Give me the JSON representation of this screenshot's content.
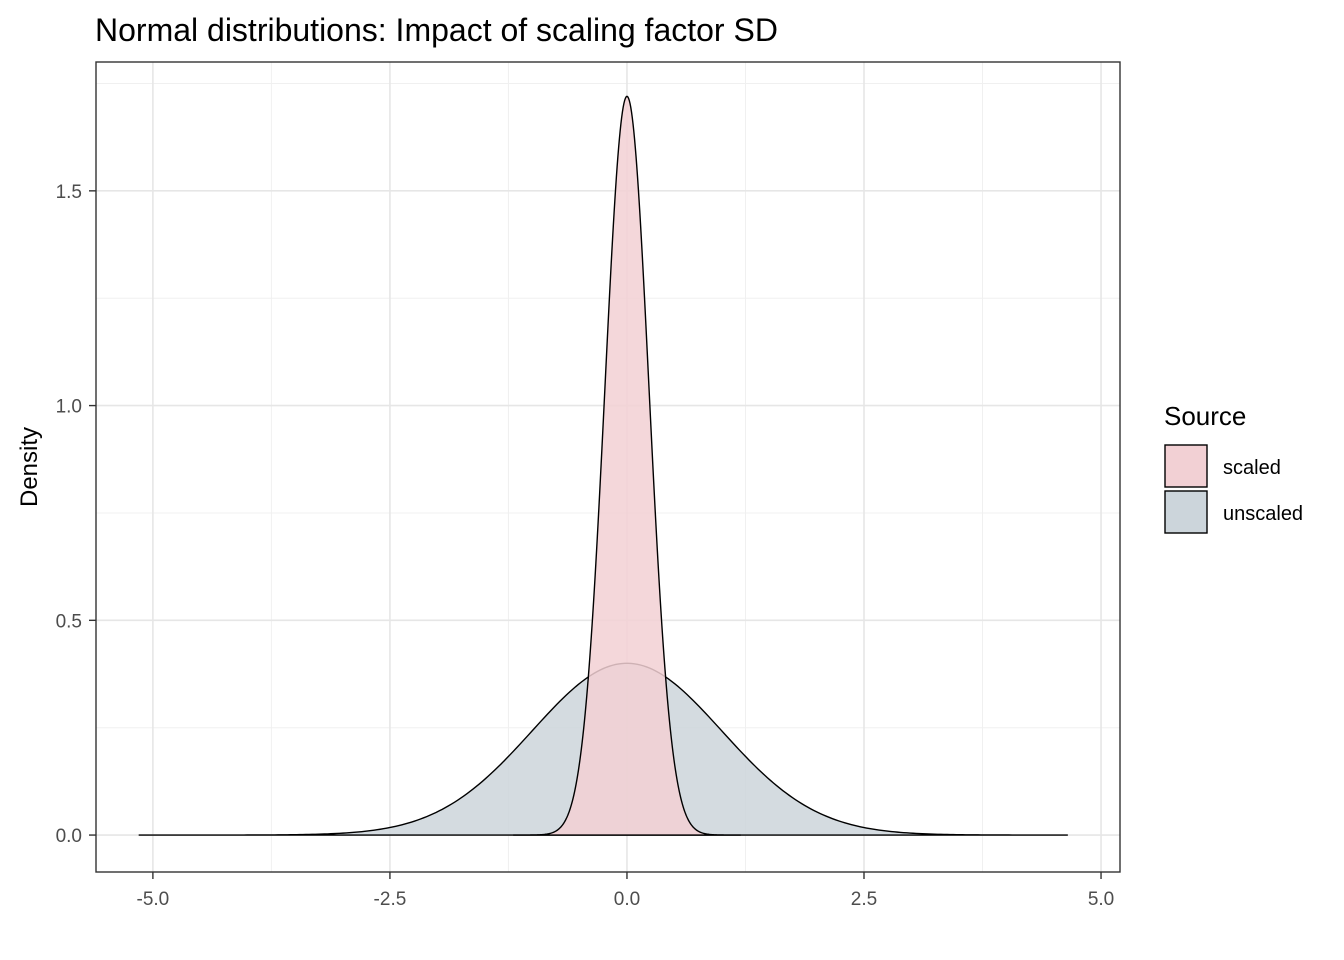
{
  "chart_data": {
    "type": "area",
    "title": "Normal distributions: Impact of scaling factor SD",
    "xlabel": "",
    "ylabel": "Density",
    "xlim": [
      -5.6,
      5.2
    ],
    "ylim": [
      -0.086,
      1.8
    ],
    "x_ticks": [
      "-5.0",
      "-2.5",
      "0.0",
      "2.5",
      "5.0"
    ],
    "y_ticks": [
      "0.0",
      "0.5",
      "1.0",
      "1.5"
    ],
    "grid": true,
    "legend": {
      "title": "Source",
      "placement": "right",
      "entries": [
        "scaled",
        "unscaled"
      ]
    },
    "series": [
      {
        "name": "scaled",
        "color": "#f2d0d4",
        "x_range": [
          -1.2,
          1.2
        ],
        "sd": 0.232,
        "peak": 1.72
      },
      {
        "name": "unscaled",
        "color": "#ccd5db",
        "x_range": [
          -5.15,
          4.65
        ],
        "sd": 1.0,
        "peak": 0.4
      }
    ]
  }
}
